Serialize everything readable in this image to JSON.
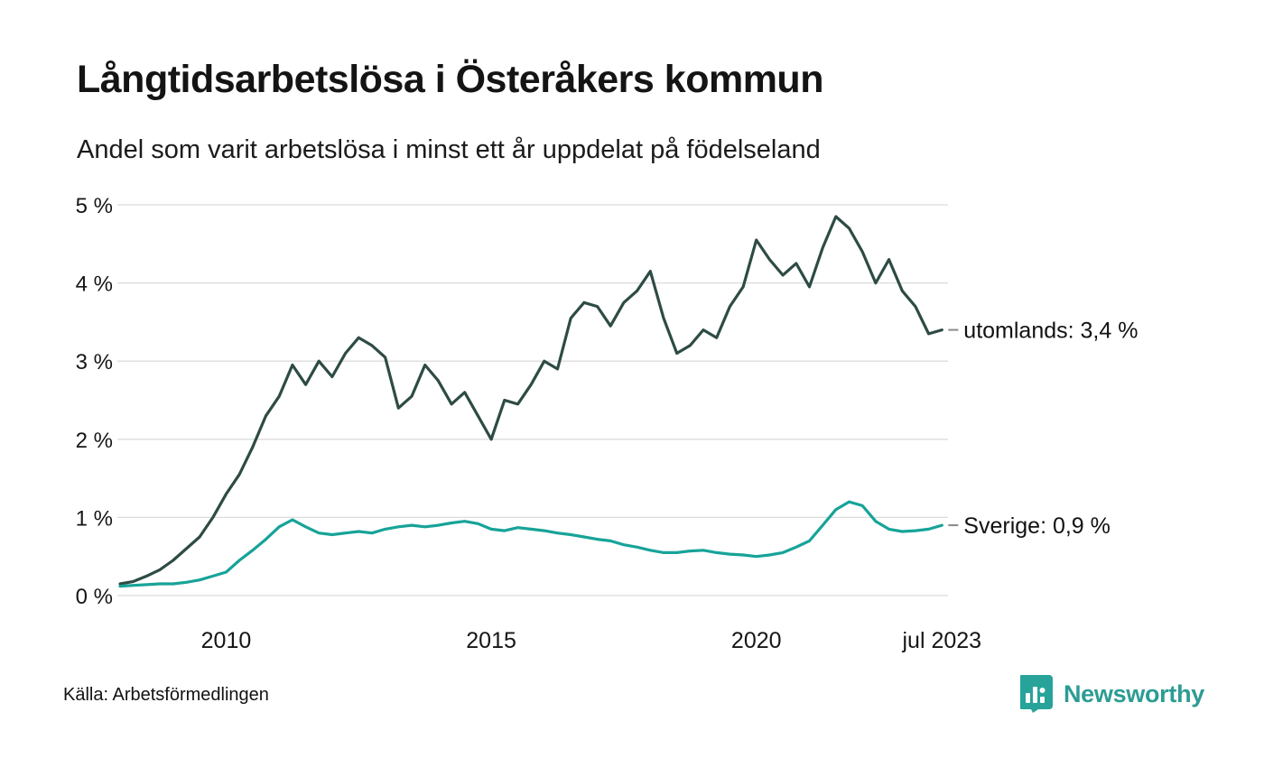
{
  "page": {
    "title": "Långtidsarbetslösa i Österåkers kommun",
    "subtitle": "Andel som varit arbetslösa i minst ett år uppdelat på födelseland",
    "source": "Källa: Arbetsförmedlingen",
    "brand": "Newsworthy"
  },
  "colors": {
    "series_utomlands": "#2e4b45",
    "series_sverige": "#17a398",
    "gridline": "#dcdcdc",
    "brand_teal": "#2c9c94",
    "text": "#141414"
  },
  "chart_data": {
    "type": "line",
    "title": "Långtidsarbetslösa i Österåkers kommun",
    "subtitle": "Andel som varit arbetslösa i minst ett år uppdelat på födelseland",
    "xlabel": "",
    "ylabel": "",
    "grid": "horizontal",
    "legend_position": "end-of-line-labels",
    "xlim": [
      2008,
      2023.58
    ],
    "ylim": [
      0,
      5
    ],
    "y_ticks": [
      {
        "v": 0,
        "label": "0 %"
      },
      {
        "v": 1,
        "label": "1 %"
      },
      {
        "v": 2,
        "label": "2 %"
      },
      {
        "v": 3,
        "label": "3 %"
      },
      {
        "v": 4,
        "label": "4 %"
      },
      {
        "v": 5,
        "label": "5 %"
      }
    ],
    "x_ticks": [
      {
        "x": 2010,
        "label": "2010"
      },
      {
        "x": 2015,
        "label": "2015"
      },
      {
        "x": 2020,
        "label": "2020"
      },
      {
        "x": 2023.5,
        "label": "jul 2023"
      }
    ],
    "x": [
      2008,
      2008.25,
      2008.5,
      2008.75,
      2009,
      2009.25,
      2009.5,
      2009.75,
      2010,
      2010.25,
      2010.5,
      2010.75,
      2011,
      2011.25,
      2011.5,
      2011.75,
      2012,
      2012.25,
      2012.5,
      2012.75,
      2013,
      2013.25,
      2013.5,
      2013.75,
      2014,
      2014.25,
      2014.5,
      2014.75,
      2015,
      2015.25,
      2015.5,
      2015.75,
      2016,
      2016.25,
      2016.5,
      2016.75,
      2017,
      2017.25,
      2017.5,
      2017.75,
      2018,
      2018.25,
      2018.5,
      2018.75,
      2019,
      2019.25,
      2019.5,
      2019.75,
      2020,
      2020.25,
      2020.5,
      2020.75,
      2021,
      2021.25,
      2021.5,
      2021.75,
      2022,
      2022.25,
      2022.5,
      2022.75,
      2023,
      2023.25,
      2023.5
    ],
    "series": [
      {
        "name": "utomlands",
        "color": "#2e4b45",
        "end_label": "utomlands: 3,4 %",
        "last_value": 3.4,
        "values": [
          0.15,
          0.18,
          0.25,
          0.33,
          0.45,
          0.6,
          0.75,
          1.0,
          1.3,
          1.55,
          1.9,
          2.3,
          2.55,
          2.95,
          2.7,
          3.0,
          2.8,
          3.1,
          3.3,
          3.2,
          3.05,
          2.4,
          2.55,
          2.95,
          2.75,
          2.45,
          2.6,
          2.3,
          2.0,
          2.5,
          2.45,
          2.7,
          3.0,
          2.9,
          3.55,
          3.75,
          3.7,
          3.45,
          3.75,
          3.9,
          4.15,
          3.55,
          3.1,
          3.2,
          3.4,
          3.3,
          3.7,
          3.95,
          4.55,
          4.3,
          4.1,
          4.25,
          3.95,
          4.45,
          4.85,
          4.7,
          4.4,
          4.0,
          4.3,
          3.9,
          3.7,
          3.35,
          3.4
        ]
      },
      {
        "name": "Sverige",
        "color": "#17a398",
        "end_label": "Sverige: 0,9 %",
        "last_value": 0.9,
        "values": [
          0.12,
          0.13,
          0.14,
          0.15,
          0.15,
          0.17,
          0.2,
          0.25,
          0.3,
          0.45,
          0.58,
          0.72,
          0.88,
          0.97,
          0.88,
          0.8,
          0.78,
          0.8,
          0.82,
          0.8,
          0.85,
          0.88,
          0.9,
          0.88,
          0.9,
          0.93,
          0.95,
          0.92,
          0.85,
          0.83,
          0.87,
          0.85,
          0.83,
          0.8,
          0.78,
          0.75,
          0.72,
          0.7,
          0.65,
          0.62,
          0.58,
          0.55,
          0.55,
          0.57,
          0.58,
          0.55,
          0.53,
          0.52,
          0.5,
          0.52,
          0.55,
          0.62,
          0.7,
          0.9,
          1.1,
          1.2,
          1.15,
          0.95,
          0.85,
          0.82,
          0.83,
          0.85,
          0.9
        ]
      }
    ]
  }
}
